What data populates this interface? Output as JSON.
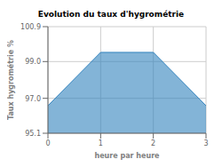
{
  "chart_data": {
    "type": "area",
    "title": "Evolution du taux d'hygrométrie",
    "xlabel": "heure par heure",
    "ylabel": "Taux hygrométrie %",
    "x": [
      0,
      1,
      2,
      3
    ],
    "values": [
      96.6,
      99.5,
      99.5,
      96.6
    ],
    "xlim": [
      0,
      3
    ],
    "ylim": [
      95.1,
      100.9
    ],
    "xticks": [
      0,
      1,
      2,
      3
    ],
    "yticks": [
      95.1,
      {
        "value": 97.0,
        "label": "97.0"
      },
      {
        "value": 99.0,
        "label": "99.0"
      },
      100.9
    ],
    "grid": true
  }
}
